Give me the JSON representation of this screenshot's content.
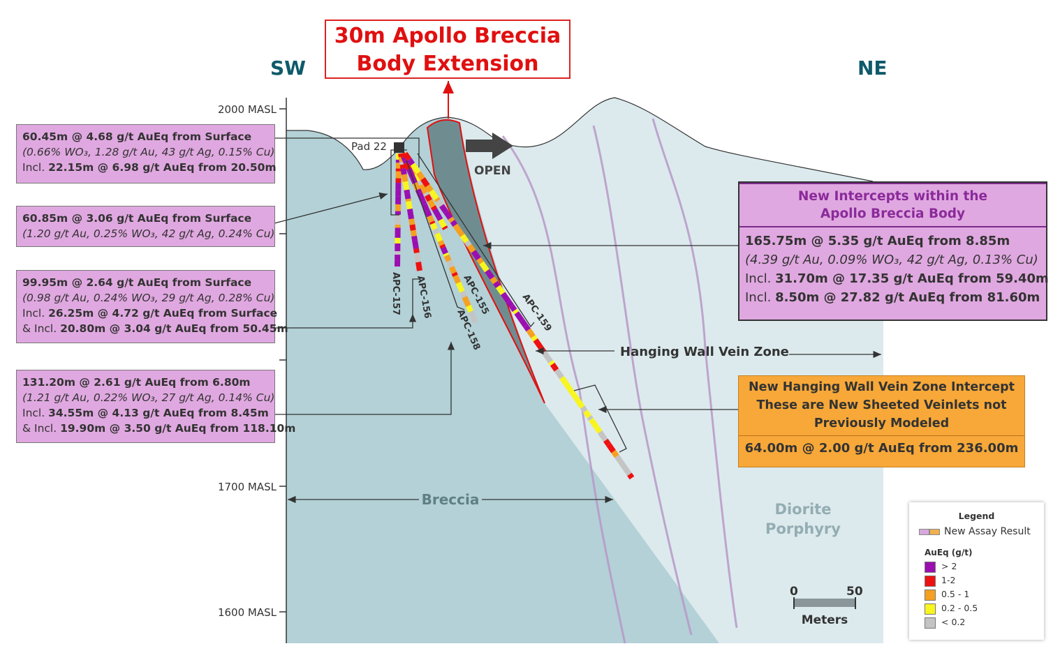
{
  "title": {
    "line1": "30m Apollo Breccia",
    "line2": "Body Extension"
  },
  "directions": {
    "left": "SW",
    "right": "NE"
  },
  "elevations": [
    "2000 MASL",
    "1700 MASL",
    "1600 MASL"
  ],
  "pad_label": "Pad 22",
  "open_label": "OPEN",
  "zones": {
    "hanging_wall": "Hanging Wall Vein Zone",
    "breccia": "Breccia",
    "diorite_line1": "Diorite",
    "diorite_line2": "Porphyry"
  },
  "holes": [
    "APC-157",
    "APC-156",
    "APC-155",
    "APC-158",
    "APC-159"
  ],
  "left_boxes": [
    {
      "lines": [
        {
          "bold": "60.45m @ 4.68 g/t AuEq from Surface"
        },
        {
          "italic": "(0.66% WO₃, 1.28 g/t Au, 43 g/t Ag, 0.15% Cu)"
        },
        {
          "prefix": "Incl. ",
          "bold": "22.15m @ 6.98 g/t AuEq from 20.50m"
        }
      ]
    },
    {
      "lines": [
        {
          "bold": "60.85m @ 3.06 g/t AuEq from Surface"
        },
        {
          "italic": "(1.20 g/t Au, 0.25% WO₃, 42 g/t Ag, 0.24% Cu)"
        }
      ]
    },
    {
      "lines": [
        {
          "bold": "99.95m @ 2.64 g/t AuEq from Surface"
        },
        {
          "italic": "(0.98 g/t Au, 0.24% WO₃, 29 g/t Ag, 0.28% Cu)"
        },
        {
          "prefix": "Incl. ",
          "bold": "26.25m @ 4.72 g/t AuEq from Surface"
        },
        {
          "prefix": "& Incl. ",
          "bold": "20.80m @ 3.04 g/t AuEq from 50.45m"
        }
      ]
    },
    {
      "lines": [
        {
          "bold": "131.20m @ 2.61 g/t AuEq from 6.80m"
        },
        {
          "italic": "(1.21 g/t Au, 0.22% WO₃, 27 g/t Ag, 0.14% Cu)"
        },
        {
          "prefix": "Incl. ",
          "bold": "34.55m @ 4.13 g/t AuEq from 8.45m"
        },
        {
          "prefix": "& Incl. ",
          "bold": "19.90m @ 3.50 g/t AuEq from 118.10m"
        }
      ]
    }
  ],
  "new_intercepts": {
    "header1": "New Intercepts within the",
    "header2": "Apollo Breccia Body",
    "lines": [
      {
        "bold": "165.75m @ 5.35 g/t AuEq from 8.85m"
      },
      {
        "italic": "(4.39 g/t Au, 0.09% WO₃, 42 g/t Ag, 0.13% Cu)"
      },
      {
        "prefix": "Incl. ",
        "bold": "31.70m @ 17.35 g/t AuEq from 59.40m"
      },
      {
        "prefix": "Incl. ",
        "bold": "8.50m @ 27.82 g/t AuEq from 81.60m"
      }
    ]
  },
  "hanging_wall_box": {
    "header1": "New Hanging Wall Vein Zone Intercept",
    "header2": "These are New Sheeted Veinlets not",
    "header3": "Previously Modeled",
    "result": "64.00m @ 2.00 g/t AuEq from 236.00m"
  },
  "legend": {
    "title": "Legend",
    "new_assay": "New Assay Result",
    "scale_title": "AuEq (g/t)",
    "items": [
      {
        "label": "> 2",
        "color": "#9b0fb0"
      },
      {
        "label": "1-2",
        "color": "#ee1111"
      },
      {
        "label": "0.5 - 1",
        "color": "#f5a020"
      },
      {
        "label": "0.2 - 0.5",
        "color": "#f8f520"
      },
      {
        "label": "< 0.2",
        "color": "#c4c4c4"
      }
    ]
  },
  "scale_bar": {
    "start": "0",
    "end": "50",
    "unit": "Meters"
  },
  "colors": {
    "breccia": "#b3d1d7",
    "diorite": "#dceaed",
    "breccia_body": "#6f8d91",
    "box_pink": "#e0a8e0",
    "box_orange": "#f7a838",
    "title_red": "#e01010",
    "direction_teal": "#0f5a6a"
  }
}
